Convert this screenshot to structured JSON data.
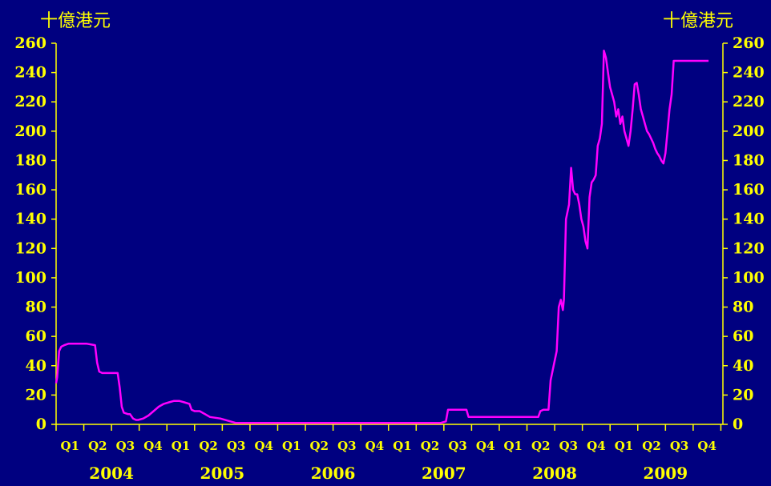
{
  "chart_data": {
    "type": "line",
    "title": "",
    "ylabel_left": "十億港元",
    "ylabel_right": "十億港元",
    "ylim": [
      0,
      260
    ],
    "yticks": [
      "0",
      "20",
      "40",
      "60",
      "80",
      "100",
      "120",
      "140",
      "160",
      "180",
      "200",
      "220",
      "240",
      "260"
    ],
    "quarter_labels": [
      "Q1",
      "Q2",
      "Q3",
      "Q4",
      "Q1",
      "Q2",
      "Q3",
      "Q4",
      "Q1",
      "Q2",
      "Q3",
      "Q4",
      "Q1",
      "Q2",
      "Q3",
      "Q4",
      "Q1",
      "Q2",
      "Q3",
      "Q4",
      "Q1",
      "Q2",
      "Q3",
      "Q4"
    ],
    "years": [
      "2004",
      "2005",
      "2006",
      "2007",
      "2008",
      "2009"
    ],
    "grid": false,
    "legend": "none",
    "line_color": "#FF00FF",
    "axis_color": "#FFFF00",
    "series": [
      {
        "x": [
          2004.0,
          2004.01,
          2004.03,
          2004.05,
          2004.08,
          2004.12,
          2004.2,
          2004.3,
          2004.38,
          2004.4,
          2004.42,
          2004.45,
          2004.5,
          2004.55,
          2004.6,
          2004.62,
          2004.64,
          2004.66,
          2004.7,
          2004.72,
          2004.75,
          2004.78,
          2004.8,
          2004.85,
          2004.9,
          2005.0,
          2005.05,
          2005.1,
          2005.15,
          2005.2,
          2005.25,
          2005.3,
          2005.32,
          2005.35,
          2005.4,
          2005.5,
          2005.6,
          2005.75,
          2006.0,
          2006.5,
          2007.0,
          2007.5,
          2007.75,
          2007.8,
          2007.82,
          2008.0,
          2008.02,
          2008.05,
          2008.2,
          2008.4,
          2008.6,
          2008.7,
          2008.72,
          2008.75,
          2008.8,
          2008.82,
          2008.85,
          2008.88,
          2008.9,
          2008.92,
          2008.94,
          2008.95,
          2008.97,
          2009.0,
          2009.02,
          2009.04,
          2009.06,
          2009.08,
          2009.1,
          2009.12,
          2009.14,
          2009.16,
          2009.18,
          2009.2,
          2009.22,
          2009.24,
          2009.26,
          2009.28,
          2009.3,
          2009.32,
          2009.34,
          2009.36,
          2009.38,
          2009.4,
          2009.42,
          2009.44,
          2009.46,
          2009.48,
          2009.5,
          2009.52,
          2009.54,
          2009.56,
          2009.58,
          2009.6,
          2009.62,
          2009.64,
          2009.66,
          2009.68,
          2009.7,
          2009.72,
          2009.74,
          2009.76,
          2009.78,
          2009.8,
          2009.82,
          2009.84,
          2009.86,
          2009.88,
          2009.9,
          2009.92,
          2009.94,
          2009.96,
          2009.98,
          2010.0,
          2010.02,
          2010.04,
          2010.06,
          2010.08,
          2010.1,
          2010.12,
          2010.14,
          2010.16,
          2010.18,
          2010.2,
          2010.22,
          2010.24,
          2010.26,
          2010.28,
          2010.3,
          2010.32,
          2010.34,
          2010.36
        ],
        "y": [
          28,
          32,
          50,
          53,
          54,
          55,
          55,
          55,
          54,
          42,
          36,
          35,
          35,
          35,
          35,
          25,
          12,
          8,
          7,
          7,
          4,
          3,
          3,
          4,
          6,
          12,
          14,
          15,
          16,
          16,
          15,
          14,
          10,
          9,
          9,
          5,
          4,
          1,
          1,
          1,
          1,
          1,
          1,
          2,
          10,
          10,
          5,
          5,
          5,
          5,
          5,
          5,
          9,
          10,
          10,
          30,
          40,
          50,
          80,
          85,
          78,
          85,
          140,
          150,
          175,
          160,
          157,
          157,
          150,
          140,
          135,
          125,
          120,
          155,
          165,
          167,
          170,
          190,
          195,
          205,
          255,
          250,
          240,
          230,
          225,
          220,
          210,
          215,
          205,
          210,
          200,
          195,
          190,
          200,
          215,
          232,
          233,
          225,
          215,
          210,
          205,
          200,
          198,
          195,
          192,
          188,
          185,
          183,
          180,
          178,
          185,
          200,
          215,
          225,
          248,
          248,
          248,
          248,
          248,
          248,
          248,
          248,
          248,
          248,
          248,
          248,
          248,
          248,
          248,
          248,
          248,
          248
        ]
      }
    ]
  }
}
